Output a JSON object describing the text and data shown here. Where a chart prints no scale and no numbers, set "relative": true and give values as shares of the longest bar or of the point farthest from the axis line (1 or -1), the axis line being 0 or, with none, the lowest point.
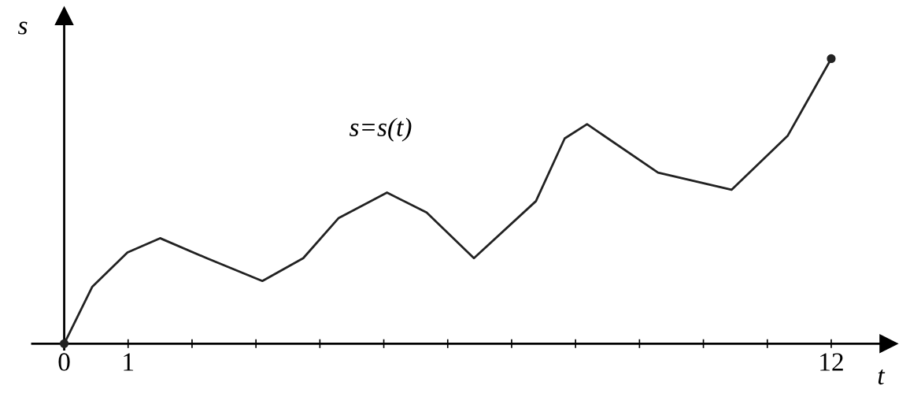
{
  "chart_data": {
    "type": "line",
    "relative": true,
    "xlabel": "t",
    "ylabel": "s",
    "annotations": [
      "s=s(t)"
    ],
    "x": [
      0,
      0.44,
      0.99,
      1.5,
      2.23,
      3.1,
      3.74,
      4.29,
      5.05,
      5.67,
      6.41,
      7.38,
      7.83,
      8.18,
      9.29,
      10.44,
      11.32,
      12
    ],
    "series": [
      {
        "color": "#222222",
        "values": [
          0,
          0.2,
          0.32,
          0.37,
          0.3,
          0.22,
          0.3,
          0.44,
          0.53,
          0.46,
          0.3,
          0.5,
          0.72,
          0.77,
          0.6,
          0.54,
          0.73,
          1
        ]
      },
      {
        "type": "scatter",
        "color": "#222222",
        "x": [
          0,
          12
        ],
        "values": [
          0,
          1
        ]
      }
    ],
    "xlim": [
      -0.5,
      12.9
    ],
    "xticks": [
      0,
      1,
      {
        "value": 2,
        "label": null
      },
      {
        "value": 3,
        "label": null
      },
      {
        "value": 4,
        "label": null
      },
      {
        "value": 5,
        "label": null
      },
      {
        "value": 6,
        "label": null
      },
      {
        "value": 7,
        "label": null
      },
      {
        "value": 8,
        "label": null
      },
      {
        "value": 9,
        "label": null
      },
      {
        "value": 10,
        "label": null
      },
      {
        "value": 11,
        "label": null
      },
      12
    ],
    "tick_labels": "x",
    "legend": false,
    "line_style": "solid"
  }
}
